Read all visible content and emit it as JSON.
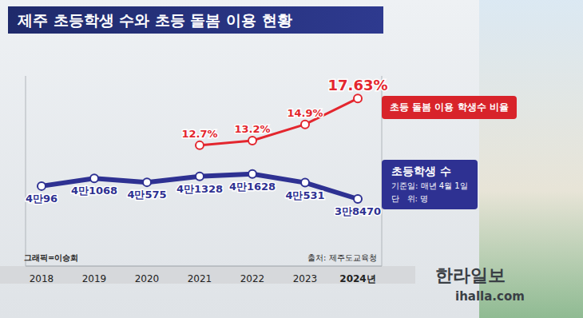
{
  "chart_data": {
    "type": "line",
    "title": "제주 초등학생 수와 초등 돌봄 이용 현황",
    "categories": [
      "2018",
      "2019",
      "2020",
      "2021",
      "2022",
      "2023",
      "2024년"
    ],
    "series": [
      {
        "name": "초등학생 수",
        "color": "#2e3192",
        "values": [
          40096,
          41068,
          40575,
          41328,
          41628,
          40531,
          38470
        ],
        "value_labels": [
          "4만96",
          "4만1068",
          "4만575",
          "4만1328",
          "4만1628",
          "4만531",
          "3만8470"
        ]
      },
      {
        "name": "초등 돌봄 이용 학생수 비율",
        "color": "#e3262e",
        "axis": "y2",
        "values": [
          null,
          null,
          null,
          12.7,
          13.2,
          14.9,
          17.63
        ],
        "value_labels": [
          null,
          null,
          null,
          "12.7%",
          "13.2%",
          "14.9%",
          "17.63%"
        ]
      }
    ],
    "ylim": [
      30000,
      54000
    ],
    "y2lim": [
      0,
      20
    ],
    "tick_labels": "x",
    "grid": false,
    "legend": "right",
    "data_labels": true,
    "marker": "circle",
    "annotations": [
      "기준일: 매년 4월 1일",
      "단   위: 명"
    ],
    "source": "출처: 제주도교육청",
    "credit": "그래픽=이승희",
    "watermark": [
      "한라일보",
      "ihalla.com"
    ]
  }
}
